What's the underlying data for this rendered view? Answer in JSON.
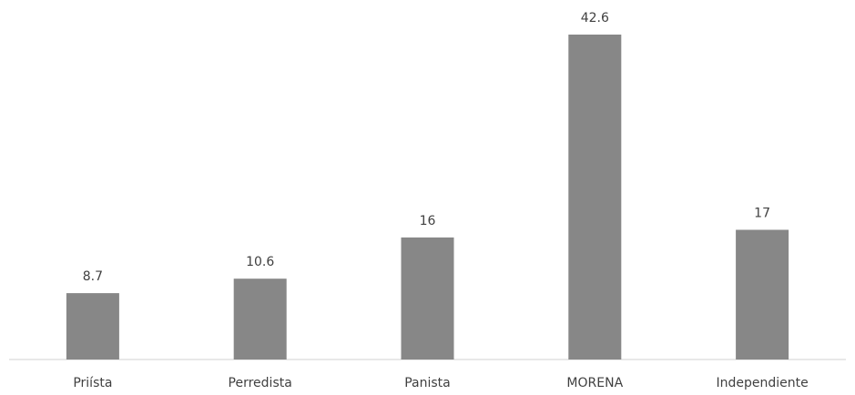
{
  "chart_data": {
    "type": "bar",
    "categories": [
      "Priísta",
      "Perredista",
      "Panista",
      "MORENA",
      "Independiente"
    ],
    "values": [
      8.7,
      10.6,
      16,
      42.6,
      17
    ],
    "value_labels": [
      "8.7",
      "10.6",
      "16",
      "42.6",
      "17"
    ],
    "title": "",
    "xlabel": "",
    "ylabel": "",
    "ylim": [
      0,
      42.6
    ],
    "grid": false,
    "legend": "none",
    "bar_color": "#878787"
  }
}
